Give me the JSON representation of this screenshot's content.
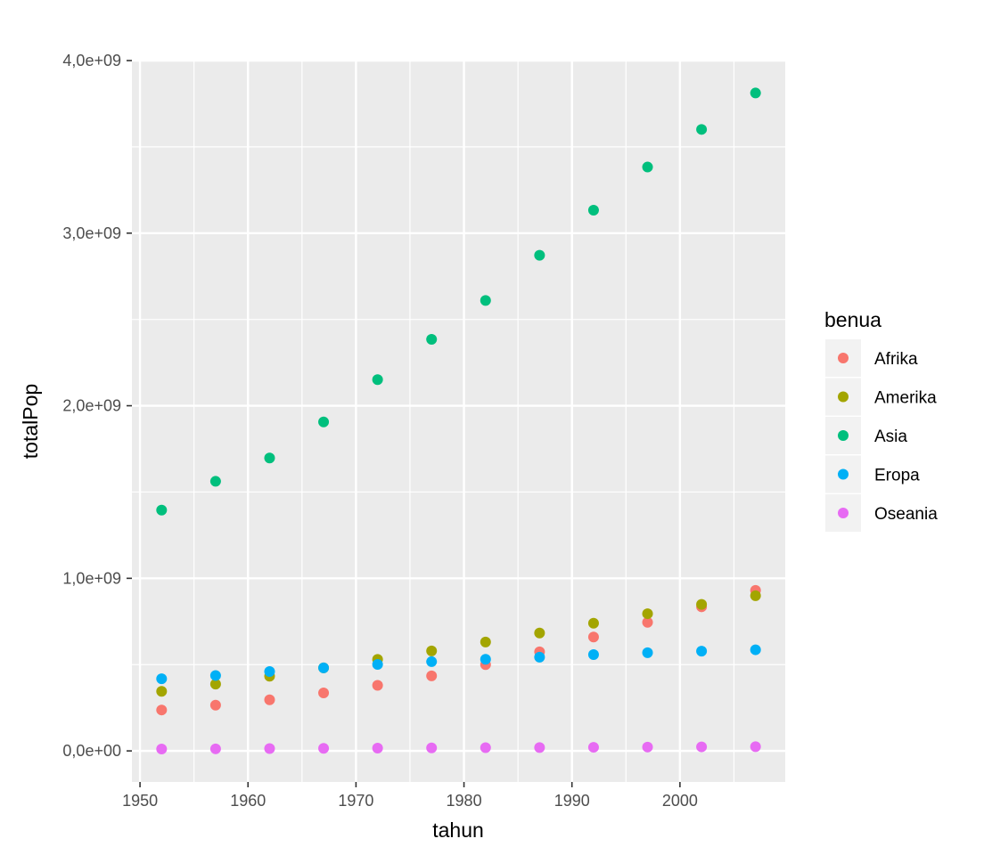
{
  "chart_data": {
    "type": "scatter",
    "title": "",
    "xlabel": "tahun",
    "ylabel": "totalPop",
    "xlim": [
      1949.25,
      2009.75
    ],
    "ylim": [
      -180000000,
      4000000000
    ],
    "x_ticks": [
      {
        "value": 1950,
        "label": "1950"
      },
      {
        "value": 1960,
        "label": "1960"
      },
      {
        "value": 1970,
        "label": "1970"
      },
      {
        "value": 1980,
        "label": "1980"
      },
      {
        "value": 1990,
        "label": "1990"
      },
      {
        "value": 2000,
        "label": "2000"
      }
    ],
    "y_ticks": [
      {
        "value": 0,
        "label": "0,0e+00"
      },
      {
        "value": 1000000000,
        "label": "1,0e+09"
      },
      {
        "value": 2000000000,
        "label": "2,0e+09"
      },
      {
        "value": 3000000000,
        "label": "3,0e+09"
      },
      {
        "value": 4000000000,
        "label": "4,0e+09"
      }
    ],
    "grid": true,
    "legend": {
      "title": "benua",
      "position": "right"
    },
    "x": [
      1952,
      1957,
      1962,
      1967,
      1972,
      1977,
      1982,
      1987,
      1992,
      1997,
      2002,
      2007
    ],
    "series": [
      {
        "name": "Afrika",
        "color": "#F8766D",
        "values": [
          237000000,
          265000000,
          296000000,
          336000000,
          380000000,
          435000000,
          500000000,
          574000000,
          660000000,
          745000000,
          835000000,
          930000000
        ]
      },
      {
        "name": "Amerika",
        "color": "#A3A500",
        "values": [
          345000000,
          387000000,
          433000000,
          481000000,
          530000000,
          579000000,
          631000000,
          683000000,
          740000000,
          795000000,
          849000000,
          899000000
        ]
      },
      {
        "name": "Asia",
        "color": "#00BF7D",
        "values": [
          1395000000,
          1562000000,
          1697000000,
          1906000000,
          2151000000,
          2385000000,
          2610000000,
          2872000000,
          3133000000,
          3383000000,
          3601000000,
          3812000000
        ]
      },
      {
        "name": "Eropa",
        "color": "#00B0F6",
        "values": [
          418000000,
          437000000,
          460000000,
          481000000,
          501000000,
          517000000,
          531000000,
          543000000,
          558000000,
          569000000,
          578000000,
          586000000
        ]
      },
      {
        "name": "Oseania",
        "color": "#E76BF3",
        "values": [
          10700000,
          11900000,
          13300000,
          14600000,
          16100000,
          17200000,
          18400000,
          19500000,
          20900000,
          22200000,
          23500000,
          24500000
        ]
      }
    ]
  }
}
